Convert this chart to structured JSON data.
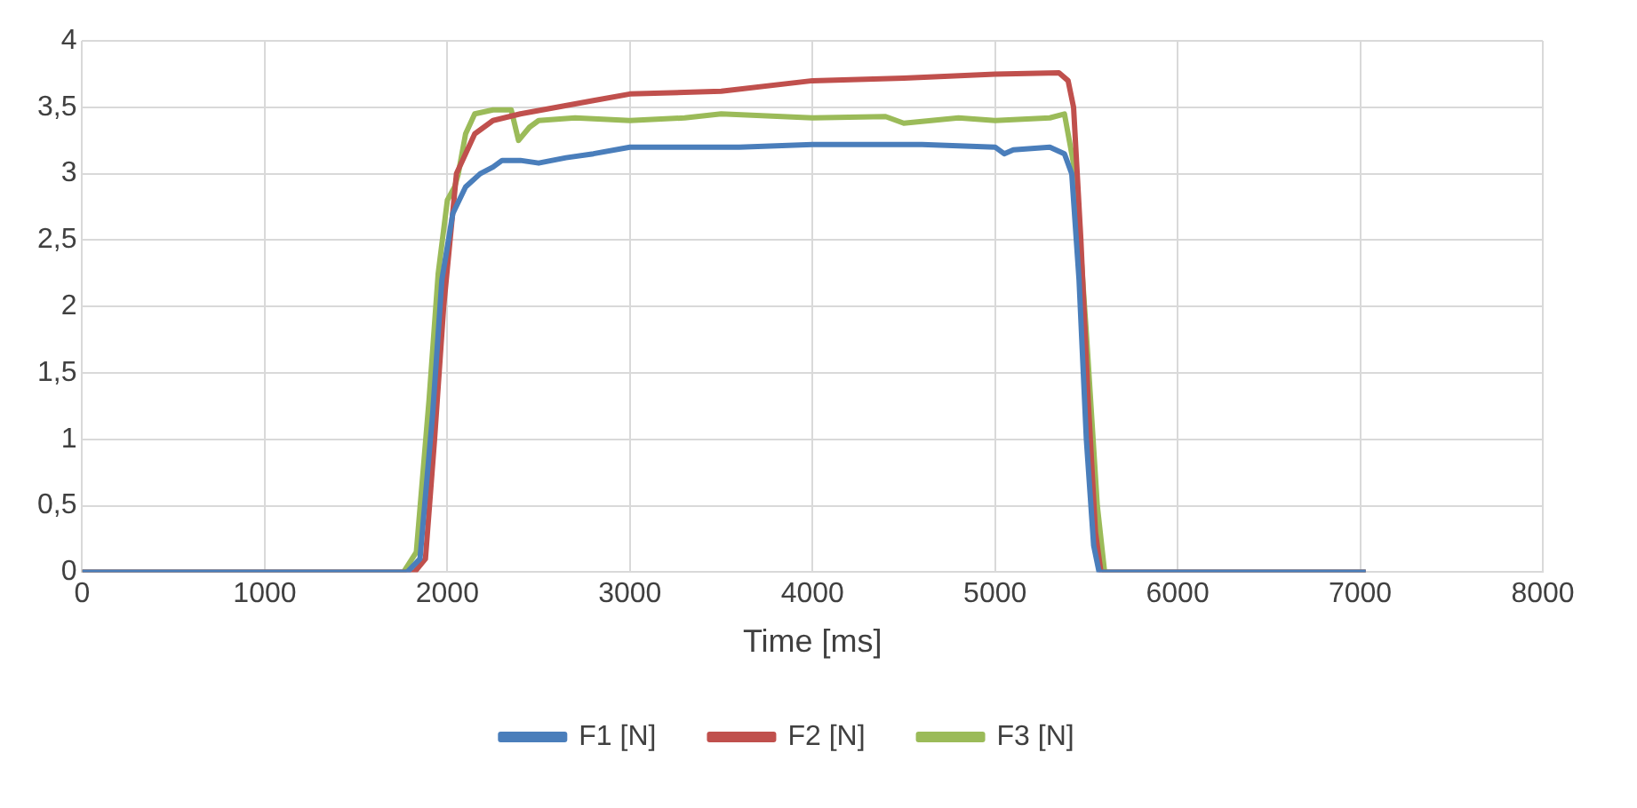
{
  "chart_data": {
    "type": "line",
    "xlabel": "Time [ms]",
    "xlim": [
      0,
      8000
    ],
    "xticks": [
      0,
      1000,
      2000,
      3000,
      4000,
      5000,
      6000,
      7000,
      8000
    ],
    "ylim": [
      0,
      4
    ],
    "yticks": [
      0,
      {
        "value": 0.5,
        "label": "0,5"
      },
      1,
      {
        "value": 1.5,
        "label": "1,5"
      },
      2,
      {
        "value": 2.5,
        "label": "2,5"
      },
      3,
      {
        "value": 3.5,
        "label": "3,5"
      },
      4
    ],
    "grid": true,
    "legend": "bottom",
    "marker": "none",
    "line_style": "solid",
    "series": [
      {
        "name": "F1 [N]",
        "color": "#4a7ebb",
        "x": [
          0,
          1000,
          1780,
          1850,
          1920,
          1970,
          2030,
          2100,
          2180,
          2250,
          2300,
          2400,
          2500,
          2650,
          2800,
          3000,
          3300,
          3600,
          4000,
          4300,
          4600,
          5000,
          5050,
          5100,
          5300,
          5380,
          5420,
          5460,
          5500,
          5540,
          5570,
          6000,
          7030
        ],
        "values": [
          0,
          0,
          0,
          0.1,
          1.2,
          2.2,
          2.7,
          2.9,
          3.0,
          3.05,
          3.1,
          3.1,
          3.08,
          3.12,
          3.15,
          3.2,
          3.2,
          3.2,
          3.22,
          3.22,
          3.22,
          3.2,
          3.15,
          3.18,
          3.2,
          3.15,
          3.0,
          2.2,
          1.0,
          0.2,
          0,
          0,
          0
        ]
      },
      {
        "name": "F2 [N]",
        "color": "#c0504d",
        "x": [
          0,
          1000,
          1820,
          1880,
          1930,
          1980,
          2050,
          2150,
          2250,
          2400,
          2600,
          2800,
          3000,
          3500,
          4000,
          4500,
          5000,
          5350,
          5400,
          5430,
          5470,
          5510,
          5550,
          5580,
          6000,
          7030
        ],
        "values": [
          0,
          0,
          0,
          0.1,
          1.0,
          2.0,
          3.0,
          3.3,
          3.4,
          3.45,
          3.5,
          3.55,
          3.6,
          3.62,
          3.7,
          3.72,
          3.75,
          3.76,
          3.7,
          3.5,
          2.5,
          1.3,
          0.3,
          0,
          0,
          0
        ]
      },
      {
        "name": "F3 [N]",
        "color": "#9bbb59",
        "x": [
          0,
          1000,
          1760,
          1830,
          1900,
          1950,
          2000,
          2040,
          2060,
          2100,
          2150,
          2250,
          2350,
          2390,
          2450,
          2500,
          2700,
          3000,
          3300,
          3500,
          4000,
          4400,
          4500,
          4800,
          5000,
          5300,
          5380,
          5440,
          5500,
          5560,
          5600,
          6000,
          7030
        ],
        "values": [
          0,
          0,
          0,
          0.15,
          1.3,
          2.25,
          2.8,
          2.9,
          3.0,
          3.3,
          3.45,
          3.48,
          3.48,
          3.25,
          3.35,
          3.4,
          3.42,
          3.4,
          3.42,
          3.45,
          3.42,
          3.43,
          3.38,
          3.42,
          3.4,
          3.42,
          3.45,
          3.0,
          1.8,
          0.5,
          0,
          0,
          0
        ]
      }
    ]
  }
}
